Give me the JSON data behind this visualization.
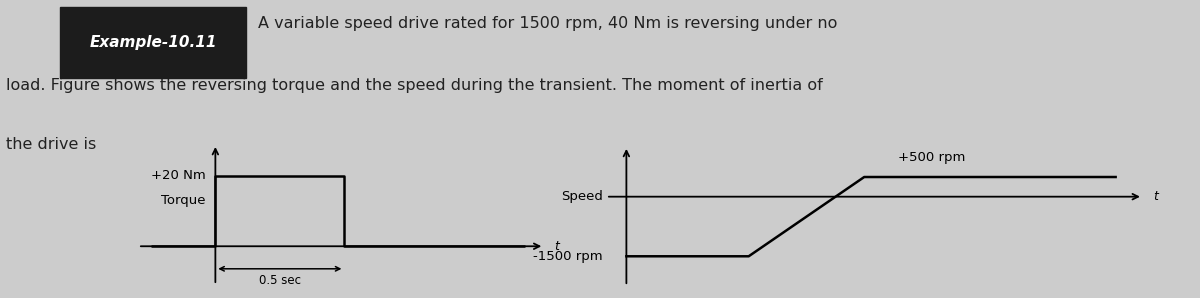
{
  "title_label": "Example-10.11",
  "line1": "A variable speed drive rated for 1500 rpm, 40 Nm is reversing under no",
  "line2": "load. Figure shows the reversing torque and the speed during the transient. The moment of inertia of",
  "line3": "the drive is",
  "bg_color": "#cccccc",
  "box_color": "#1c1c1c",
  "text_color": "#222222",
  "torque_label": "+20 Nm",
  "torque_sublabel": "Torque",
  "time_annotation": "0.5 sec",
  "speed_high_label": "+500 rpm",
  "speed_low_label": "-1500 rpm",
  "speed_sublabel": "Speed",
  "t_label": "t",
  "font_size_text": 11.5,
  "font_size_diagram": 9.5,
  "title_font_size": 11
}
